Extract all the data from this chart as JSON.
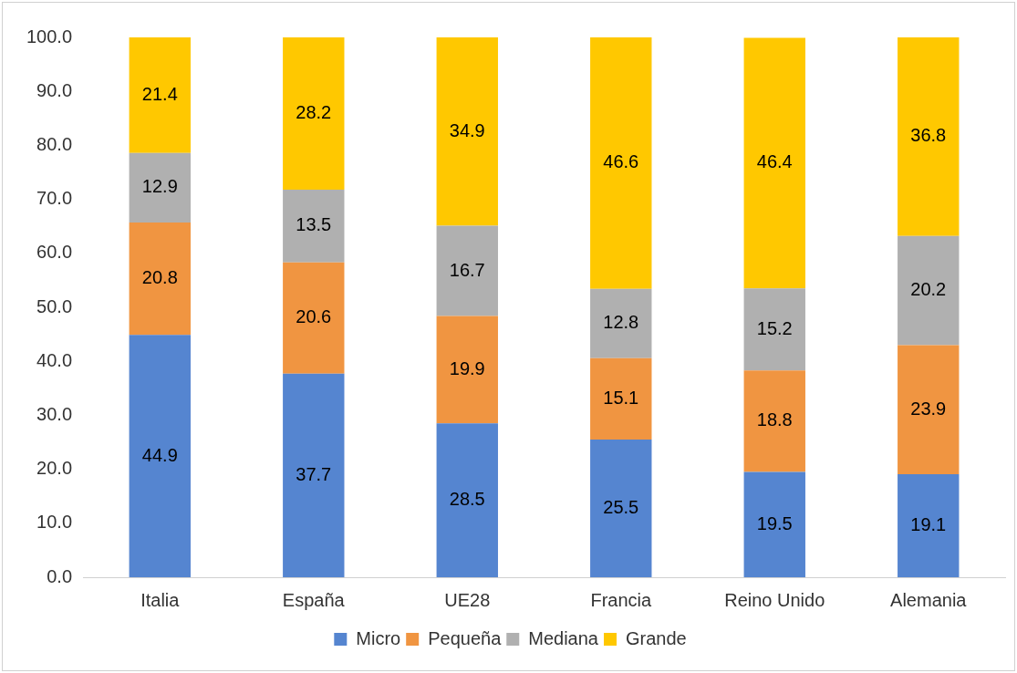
{
  "chart_data": {
    "type": "bar",
    "stacked": true,
    "categories": [
      "Italia",
      "España",
      "UE28",
      "Francia",
      "Reino Unido",
      "Alemania"
    ],
    "series": [
      {
        "name": "Micro",
        "color": "#5585d0",
        "values": [
          44.9,
          37.7,
          28.5,
          25.5,
          19.5,
          19.1
        ]
      },
      {
        "name": "Pequeña",
        "color": "#f09541",
        "values": [
          20.8,
          20.6,
          19.9,
          15.1,
          18.8,
          23.9
        ]
      },
      {
        "name": "Mediana",
        "color": "#b0b0b0",
        "values": [
          12.9,
          13.5,
          16.7,
          12.8,
          15.2,
          20.2
        ]
      },
      {
        "name": "Grande",
        "color": "#ffc800",
        "values": [
          21.4,
          28.2,
          34.9,
          46.6,
          46.4,
          36.8
        ]
      }
    ],
    "ylim": [
      0,
      100
    ],
    "yticks": [
      {
        "value": 0,
        "label": "0.0"
      },
      {
        "value": 10,
        "label": "10.0"
      },
      {
        "value": 20,
        "label": "20.0"
      },
      {
        "value": 30,
        "label": "30.0"
      },
      {
        "value": 40,
        "label": "40.0"
      },
      {
        "value": 50,
        "label": "50.0"
      },
      {
        "value": 60,
        "label": "60.0"
      },
      {
        "value": 70,
        "label": "70.0"
      },
      {
        "value": 80,
        "label": "80.0"
      },
      {
        "value": 90,
        "label": "90.0"
      },
      {
        "value": 100,
        "label": "100.0"
      }
    ],
    "grid": false,
    "legend": "bottom",
    "data_labels": true
  }
}
